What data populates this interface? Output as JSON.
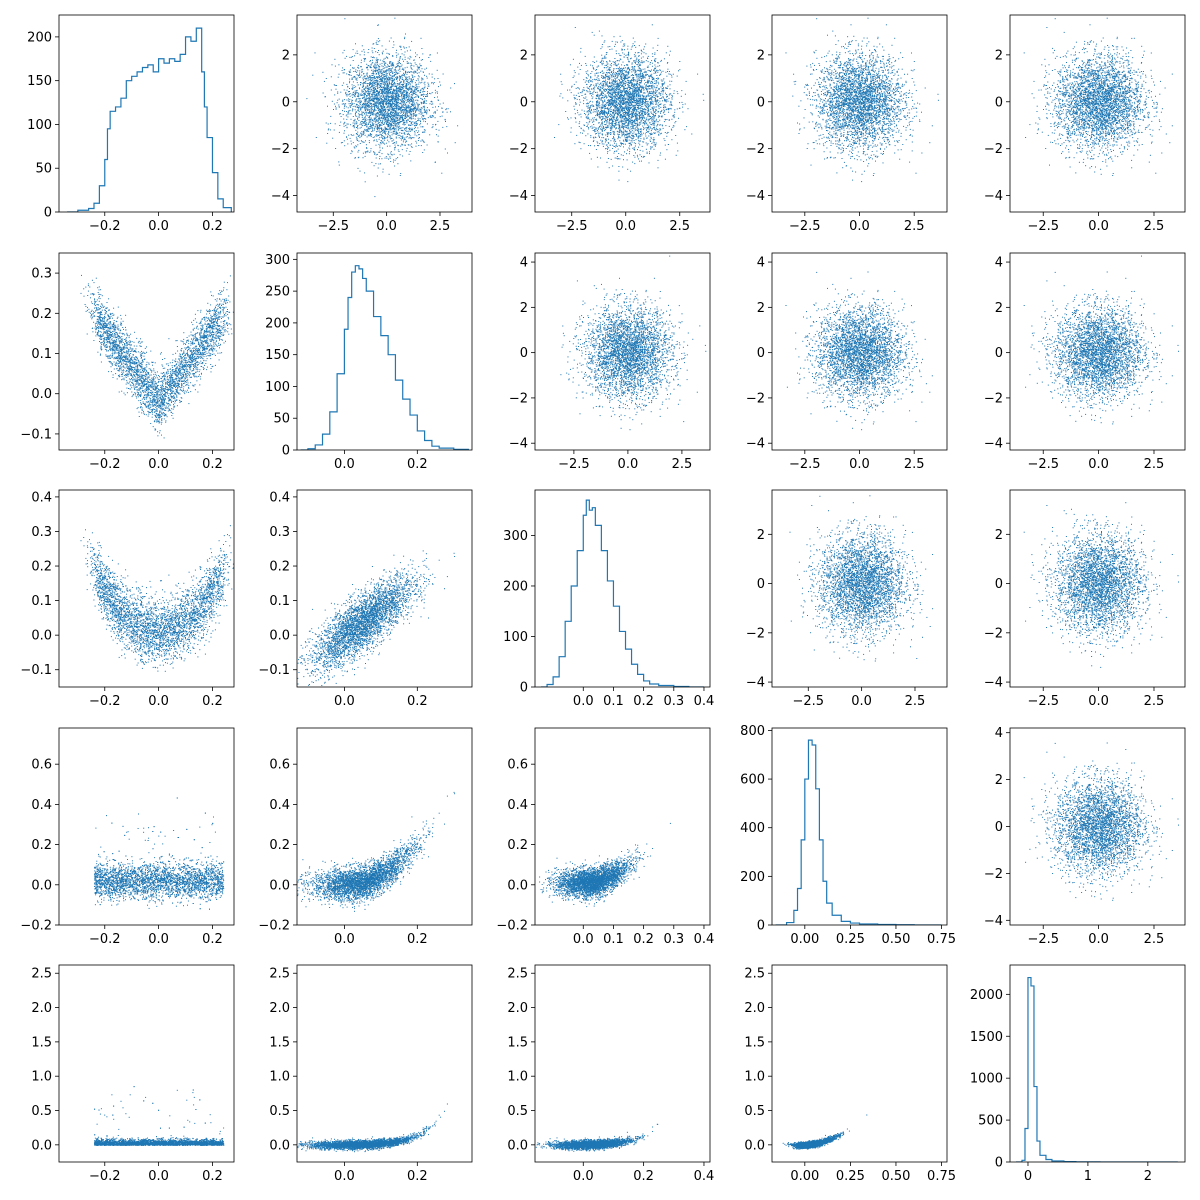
{
  "figure": {
    "layout": "5x5 corner grid",
    "accent_color": "#1f77b4",
    "background": "#ffffff"
  },
  "chart_data": [
    {
      "row": 0,
      "col": 0,
      "type": "histogram",
      "xlim": [
        -0.37,
        0.28
      ],
      "ylim": [
        0,
        225
      ],
      "xticks": [
        -0.2,
        0.0,
        0.2
      ],
      "yticks": [
        0,
        50,
        100,
        150,
        200
      ],
      "x": [
        -0.34,
        -0.3,
        -0.26,
        -0.24,
        -0.22,
        -0.2,
        -0.19,
        -0.18,
        -0.16,
        -0.14,
        -0.12,
        -0.1,
        -0.08,
        -0.06,
        -0.04,
        -0.02,
        0.0,
        0.02,
        0.04,
        0.06,
        0.08,
        0.1,
        0.12,
        0.14,
        0.16,
        0.17,
        0.18,
        0.2,
        0.22,
        0.24,
        0.27
      ],
      "y": [
        0,
        2,
        4,
        10,
        30,
        60,
        95,
        115,
        120,
        130,
        150,
        155,
        160,
        165,
        168,
        160,
        175,
        170,
        175,
        172,
        180,
        200,
        195,
        210,
        160,
        120,
        85,
        45,
        15,
        5,
        0
      ]
    },
    {
      "row": 0,
      "col": 1,
      "type": "scatter",
      "xlim": [
        -4.2,
        4.0
      ],
      "ylim": [
        -4.7,
        3.7
      ],
      "xticks": [
        -2.5,
        0.0,
        2.5
      ],
      "yticks": [
        -4,
        -2,
        0,
        2
      ],
      "dist": "gauss",
      "sx": 1,
      "sy": 1
    },
    {
      "row": 0,
      "col": 2,
      "type": "scatter",
      "xlim": [
        -4.2,
        3.9
      ],
      "ylim": [
        -4.7,
        3.7
      ],
      "xticks": [
        -2.5,
        0.0,
        2.5
      ],
      "yticks": [
        -4,
        -2,
        0,
        2
      ],
      "dist": "gauss",
      "sx": 1,
      "sy": 1
    },
    {
      "row": 0,
      "col": 3,
      "type": "scatter",
      "xlim": [
        -4.0,
        4.0
      ],
      "ylim": [
        -4.7,
        3.7
      ],
      "xticks": [
        -2.5,
        0.0,
        2.5
      ],
      "yticks": [
        -4,
        -2,
        0,
        2
      ],
      "dist": "gauss",
      "sx": 1,
      "sy": 1
    },
    {
      "row": 0,
      "col": 4,
      "type": "scatter",
      "xlim": [
        -4.0,
        3.9
      ],
      "ylim": [
        -4.7,
        3.7
      ],
      "xticks": [
        -2.5,
        0.0,
        2.5
      ],
      "yticks": [
        -4,
        -2,
        0,
        2
      ],
      "dist": "gauss",
      "sx": 1,
      "sy": 1
    },
    {
      "row": 1,
      "col": 0,
      "type": "scatter",
      "xlim": [
        -0.37,
        0.28
      ],
      "ylim": [
        -0.14,
        0.35
      ],
      "xticks": [
        -0.2,
        0.0,
        0.2
      ],
      "yticks": [
        -0.1,
        0.0,
        0.1,
        0.2,
        0.3
      ],
      "dist": "vshape"
    },
    {
      "row": 1,
      "col": 1,
      "type": "histogram",
      "xlim": [
        -0.13,
        0.35
      ],
      "ylim": [
        0,
        310
      ],
      "xticks": [
        0.0,
        0.2
      ],
      "yticks": [
        0,
        50,
        100,
        150,
        200,
        250,
        300
      ],
      "x": [
        -0.12,
        -0.1,
        -0.08,
        -0.06,
        -0.04,
        -0.02,
        0.0,
        0.01,
        0.02,
        0.03,
        0.04,
        0.05,
        0.06,
        0.08,
        0.1,
        0.12,
        0.14,
        0.16,
        0.18,
        0.2,
        0.22,
        0.24,
        0.26,
        0.3,
        0.34
      ],
      "y": [
        0,
        2,
        8,
        25,
        60,
        120,
        190,
        240,
        280,
        290,
        285,
        270,
        250,
        210,
        180,
        150,
        110,
        80,
        55,
        30,
        15,
        6,
        3,
        1,
        0
      ]
    },
    {
      "row": 1,
      "col": 2,
      "type": "scatter",
      "xlim": [
        -4.3,
        3.8
      ],
      "ylim": [
        -4.3,
        4.4
      ],
      "xticks": [
        -2.5,
        0.0,
        2.5
      ],
      "yticks": [
        -4,
        -2,
        0,
        2,
        4
      ],
      "dist": "gauss",
      "sx": 1,
      "sy": 1
    },
    {
      "row": 1,
      "col": 3,
      "type": "scatter",
      "xlim": [
        -4.0,
        4.0
      ],
      "ylim": [
        -4.3,
        4.4
      ],
      "xticks": [
        -2.5,
        0.0,
        2.5
      ],
      "yticks": [
        -4,
        -2,
        0,
        2,
        4
      ],
      "dist": "gauss",
      "sx": 1,
      "sy": 1
    },
    {
      "row": 1,
      "col": 4,
      "type": "scatter",
      "xlim": [
        -4.0,
        3.9
      ],
      "ylim": [
        -4.3,
        4.4
      ],
      "xticks": [
        -2.5,
        0.0,
        2.5
      ],
      "yticks": [
        -4,
        -2,
        0,
        2,
        4
      ],
      "dist": "gauss",
      "sx": 1,
      "sy": 1
    },
    {
      "row": 2,
      "col": 0,
      "type": "scatter",
      "xlim": [
        -0.37,
        0.28
      ],
      "ylim": [
        -0.15,
        0.42
      ],
      "xticks": [
        -0.2,
        0.0,
        0.2
      ],
      "yticks": [
        -0.1,
        0.0,
        0.1,
        0.2,
        0.3,
        0.4
      ],
      "dist": "ushape"
    },
    {
      "row": 2,
      "col": 1,
      "type": "scatter",
      "xlim": [
        -0.13,
        0.35
      ],
      "ylim": [
        -0.15,
        0.42
      ],
      "xticks": [
        0.0,
        0.2
      ],
      "yticks": [
        -0.1,
        0.0,
        0.1,
        0.2,
        0.3,
        0.4
      ],
      "dist": "linear"
    },
    {
      "row": 2,
      "col": 2,
      "type": "histogram",
      "xlim": [
        -0.16,
        0.42
      ],
      "ylim": [
        0,
        390
      ],
      "xticks": [
        0.0,
        0.1,
        0.2,
        0.3,
        0.4
      ],
      "yticks": [
        0,
        100,
        200,
        300
      ],
      "x": [
        -0.14,
        -0.12,
        -0.1,
        -0.08,
        -0.06,
        -0.04,
        -0.02,
        0.0,
        0.01,
        0.02,
        0.03,
        0.04,
        0.06,
        0.08,
        0.1,
        0.12,
        0.14,
        0.16,
        0.18,
        0.2,
        0.22,
        0.25,
        0.3,
        0.35,
        0.4
      ],
      "y": [
        0,
        5,
        20,
        60,
        130,
        200,
        270,
        340,
        370,
        350,
        355,
        320,
        270,
        210,
        160,
        110,
        75,
        45,
        25,
        12,
        6,
        3,
        1,
        0,
        0
      ]
    },
    {
      "row": 2,
      "col": 3,
      "type": "scatter",
      "xlim": [
        -4.2,
        4.0
      ],
      "ylim": [
        -4.2,
        3.8
      ],
      "xticks": [
        -2.5,
        0.0,
        2.5
      ],
      "yticks": [
        -4,
        -2,
        0,
        2
      ],
      "dist": "gauss",
      "sx": 1,
      "sy": 1
    },
    {
      "row": 2,
      "col": 4,
      "type": "scatter",
      "xlim": [
        -4.0,
        3.9
      ],
      "ylim": [
        -4.2,
        3.8
      ],
      "xticks": [
        -2.5,
        0.0,
        2.5
      ],
      "yticks": [
        -4,
        -2,
        0,
        2
      ],
      "dist": "gauss",
      "sx": 1,
      "sy": 1
    },
    {
      "row": 3,
      "col": 0,
      "type": "scatter",
      "xlim": [
        -0.37,
        0.28
      ],
      "ylim": [
        -0.2,
        0.78
      ],
      "xticks": [
        -0.2,
        0.0,
        0.2
      ],
      "yticks": [
        -0.2,
        0.0,
        0.2,
        0.4,
        0.6
      ],
      "dist": "flat"
    },
    {
      "row": 3,
      "col": 1,
      "type": "scatter",
      "xlim": [
        -0.13,
        0.35
      ],
      "ylim": [
        -0.2,
        0.78
      ],
      "xticks": [
        0.0,
        0.2
      ],
      "yticks": [
        -0.2,
        0.0,
        0.2,
        0.4,
        0.6
      ],
      "dist": "curve1"
    },
    {
      "row": 3,
      "col": 2,
      "type": "scatter",
      "xlim": [
        -0.16,
        0.42
      ],
      "ylim": [
        -0.2,
        0.78
      ],
      "xticks": [
        0.0,
        0.1,
        0.2,
        0.3,
        0.4
      ],
      "yticks": [
        -0.2,
        0.0,
        0.2,
        0.4,
        0.6
      ],
      "dist": "curve2"
    },
    {
      "row": 3,
      "col": 3,
      "type": "histogram",
      "xlim": [
        -0.18,
        0.78
      ],
      "ylim": [
        0,
        810
      ],
      "xticks": [
        0.0,
        0.25,
        0.5,
        0.75
      ],
      "yticks": [
        0,
        200,
        400,
        600,
        800
      ],
      "x": [
        -0.16,
        -0.1,
        -0.06,
        -0.04,
        -0.02,
        0.0,
        0.02,
        0.04,
        0.06,
        0.08,
        0.1,
        0.12,
        0.15,
        0.2,
        0.25,
        0.3,
        0.4,
        0.5,
        0.6,
        0.75
      ],
      "y": [
        0,
        10,
        60,
        150,
        350,
        600,
        760,
        740,
        560,
        350,
        180,
        90,
        40,
        15,
        8,
        4,
        2,
        1,
        0,
        0
      ]
    },
    {
      "row": 3,
      "col": 4,
      "type": "scatter",
      "xlim": [
        -4.0,
        3.9
      ],
      "ylim": [
        -4.2,
        4.2
      ],
      "xticks": [
        -2.5,
        0.0,
        2.5
      ],
      "yticks": [
        -4,
        -2,
        0,
        2,
        4
      ],
      "dist": "gauss",
      "sx": 1,
      "sy": 1
    },
    {
      "row": 4,
      "col": 0,
      "type": "scatter",
      "xlim": [
        -0.37,
        0.28
      ],
      "ylim": [
        -0.25,
        2.62
      ],
      "xticks": [
        -0.2,
        0.0,
        0.2
      ],
      "yticks": [
        0.0,
        0.5,
        1.0,
        1.5,
        2.0,
        2.5
      ],
      "dist": "flat2"
    },
    {
      "row": 4,
      "col": 1,
      "type": "scatter",
      "xlim": [
        -0.13,
        0.35
      ],
      "ylim": [
        -0.25,
        2.62
      ],
      "xticks": [
        0.0,
        0.2
      ],
      "yticks": [
        0.0,
        0.5,
        1.0,
        1.5,
        2.0,
        2.5
      ],
      "dist": "exp1"
    },
    {
      "row": 4,
      "col": 2,
      "type": "scatter",
      "xlim": [
        -0.16,
        0.42
      ],
      "ylim": [
        -0.25,
        2.62
      ],
      "xticks": [
        0.0,
        0.2,
        0.4
      ],
      "yticks": [
        0.0,
        0.5,
        1.0,
        1.5,
        2.0,
        2.5
      ],
      "dist": "exp2"
    },
    {
      "row": 4,
      "col": 3,
      "type": "scatter",
      "xlim": [
        -0.18,
        0.78
      ],
      "ylim": [
        -0.25,
        2.62
      ],
      "xticks": [
        0.0,
        0.25,
        0.5,
        0.75
      ],
      "yticks": [
        0.0,
        0.5,
        1.0,
        1.5,
        2.0,
        2.5
      ],
      "dist": "exp3"
    },
    {
      "row": 4,
      "col": 4,
      "type": "histogram",
      "xlim": [
        -0.3,
        2.62
      ],
      "ylim": [
        0,
        2350
      ],
      "xticks": [
        0,
        1,
        2
      ],
      "yticks": [
        0,
        500,
        1000,
        1500,
        2000
      ],
      "x": [
        -0.2,
        -0.1,
        -0.05,
        0.0,
        0.05,
        0.1,
        0.15,
        0.2,
        0.3,
        0.4,
        0.6,
        0.8,
        1.2,
        1.6,
        2.0,
        2.5
      ],
      "y": [
        0,
        20,
        400,
        2200,
        2100,
        900,
        250,
        80,
        30,
        12,
        5,
        2,
        1,
        0,
        0,
        0
      ]
    }
  ]
}
